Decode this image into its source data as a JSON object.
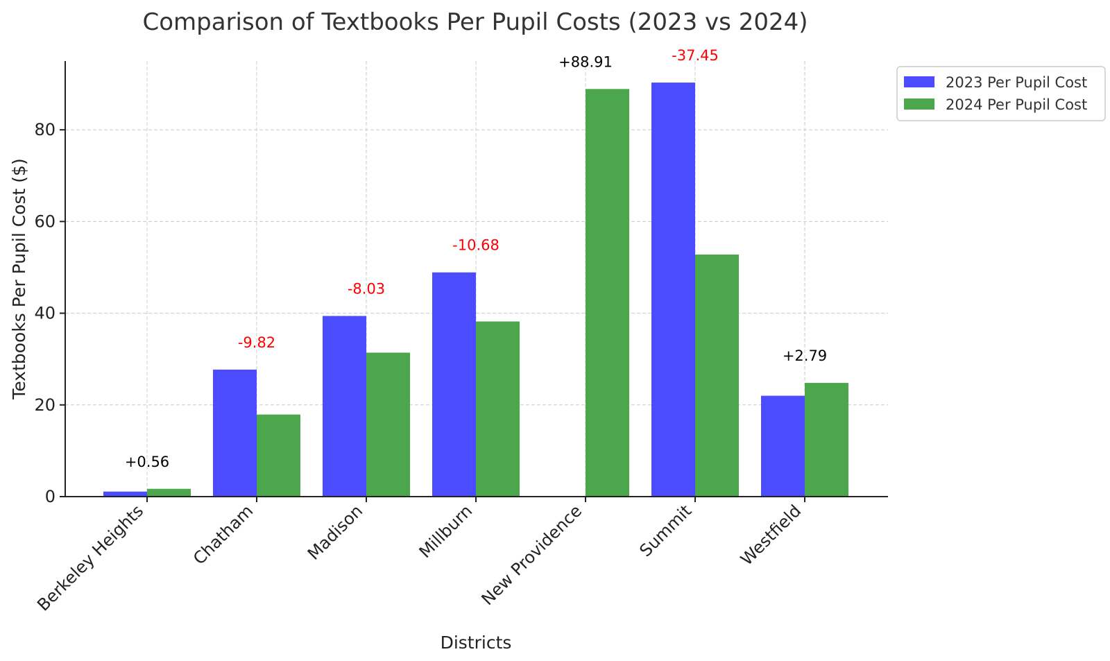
{
  "chart_data": {
    "type": "bar",
    "title": "Comparison of Textbooks Per Pupil Costs (2023 vs 2024)",
    "xlabel": "Districts",
    "ylabel": "Textbooks Per Pupil Cost ($)",
    "ylim": [
      0,
      95
    ],
    "yticks": [
      0,
      20,
      40,
      60,
      80
    ],
    "grid": true,
    "legend_position": "outside-top-right",
    "categories": [
      "Berkeley Heights",
      "Chatham",
      "Madison",
      "Millburn",
      "New Providence",
      "Summit",
      "Westfield"
    ],
    "series": [
      {
        "name": "2023 Per Pupil Cost",
        "color": "#4b4bff",
        "values": [
          1.1,
          27.7,
          39.4,
          48.9,
          0,
          90.3,
          22.0
        ]
      },
      {
        "name": "2024 Per Pupil Cost",
        "color": "#4ca64c",
        "values": [
          1.7,
          17.9,
          31.4,
          38.2,
          88.9,
          52.8,
          24.8
        ]
      }
    ],
    "annotations": [
      {
        "text": "+0.56",
        "color": "#000000"
      },
      {
        "text": "-9.82",
        "color": "#ff0000"
      },
      {
        "text": "-8.03",
        "color": "#ff0000"
      },
      {
        "text": "-10.68",
        "color": "#ff0000"
      },
      {
        "text": "+88.91",
        "color": "#000000"
      },
      {
        "text": "-37.45",
        "color": "#ff0000"
      },
      {
        "text": "+2.79",
        "color": "#000000"
      }
    ]
  }
}
